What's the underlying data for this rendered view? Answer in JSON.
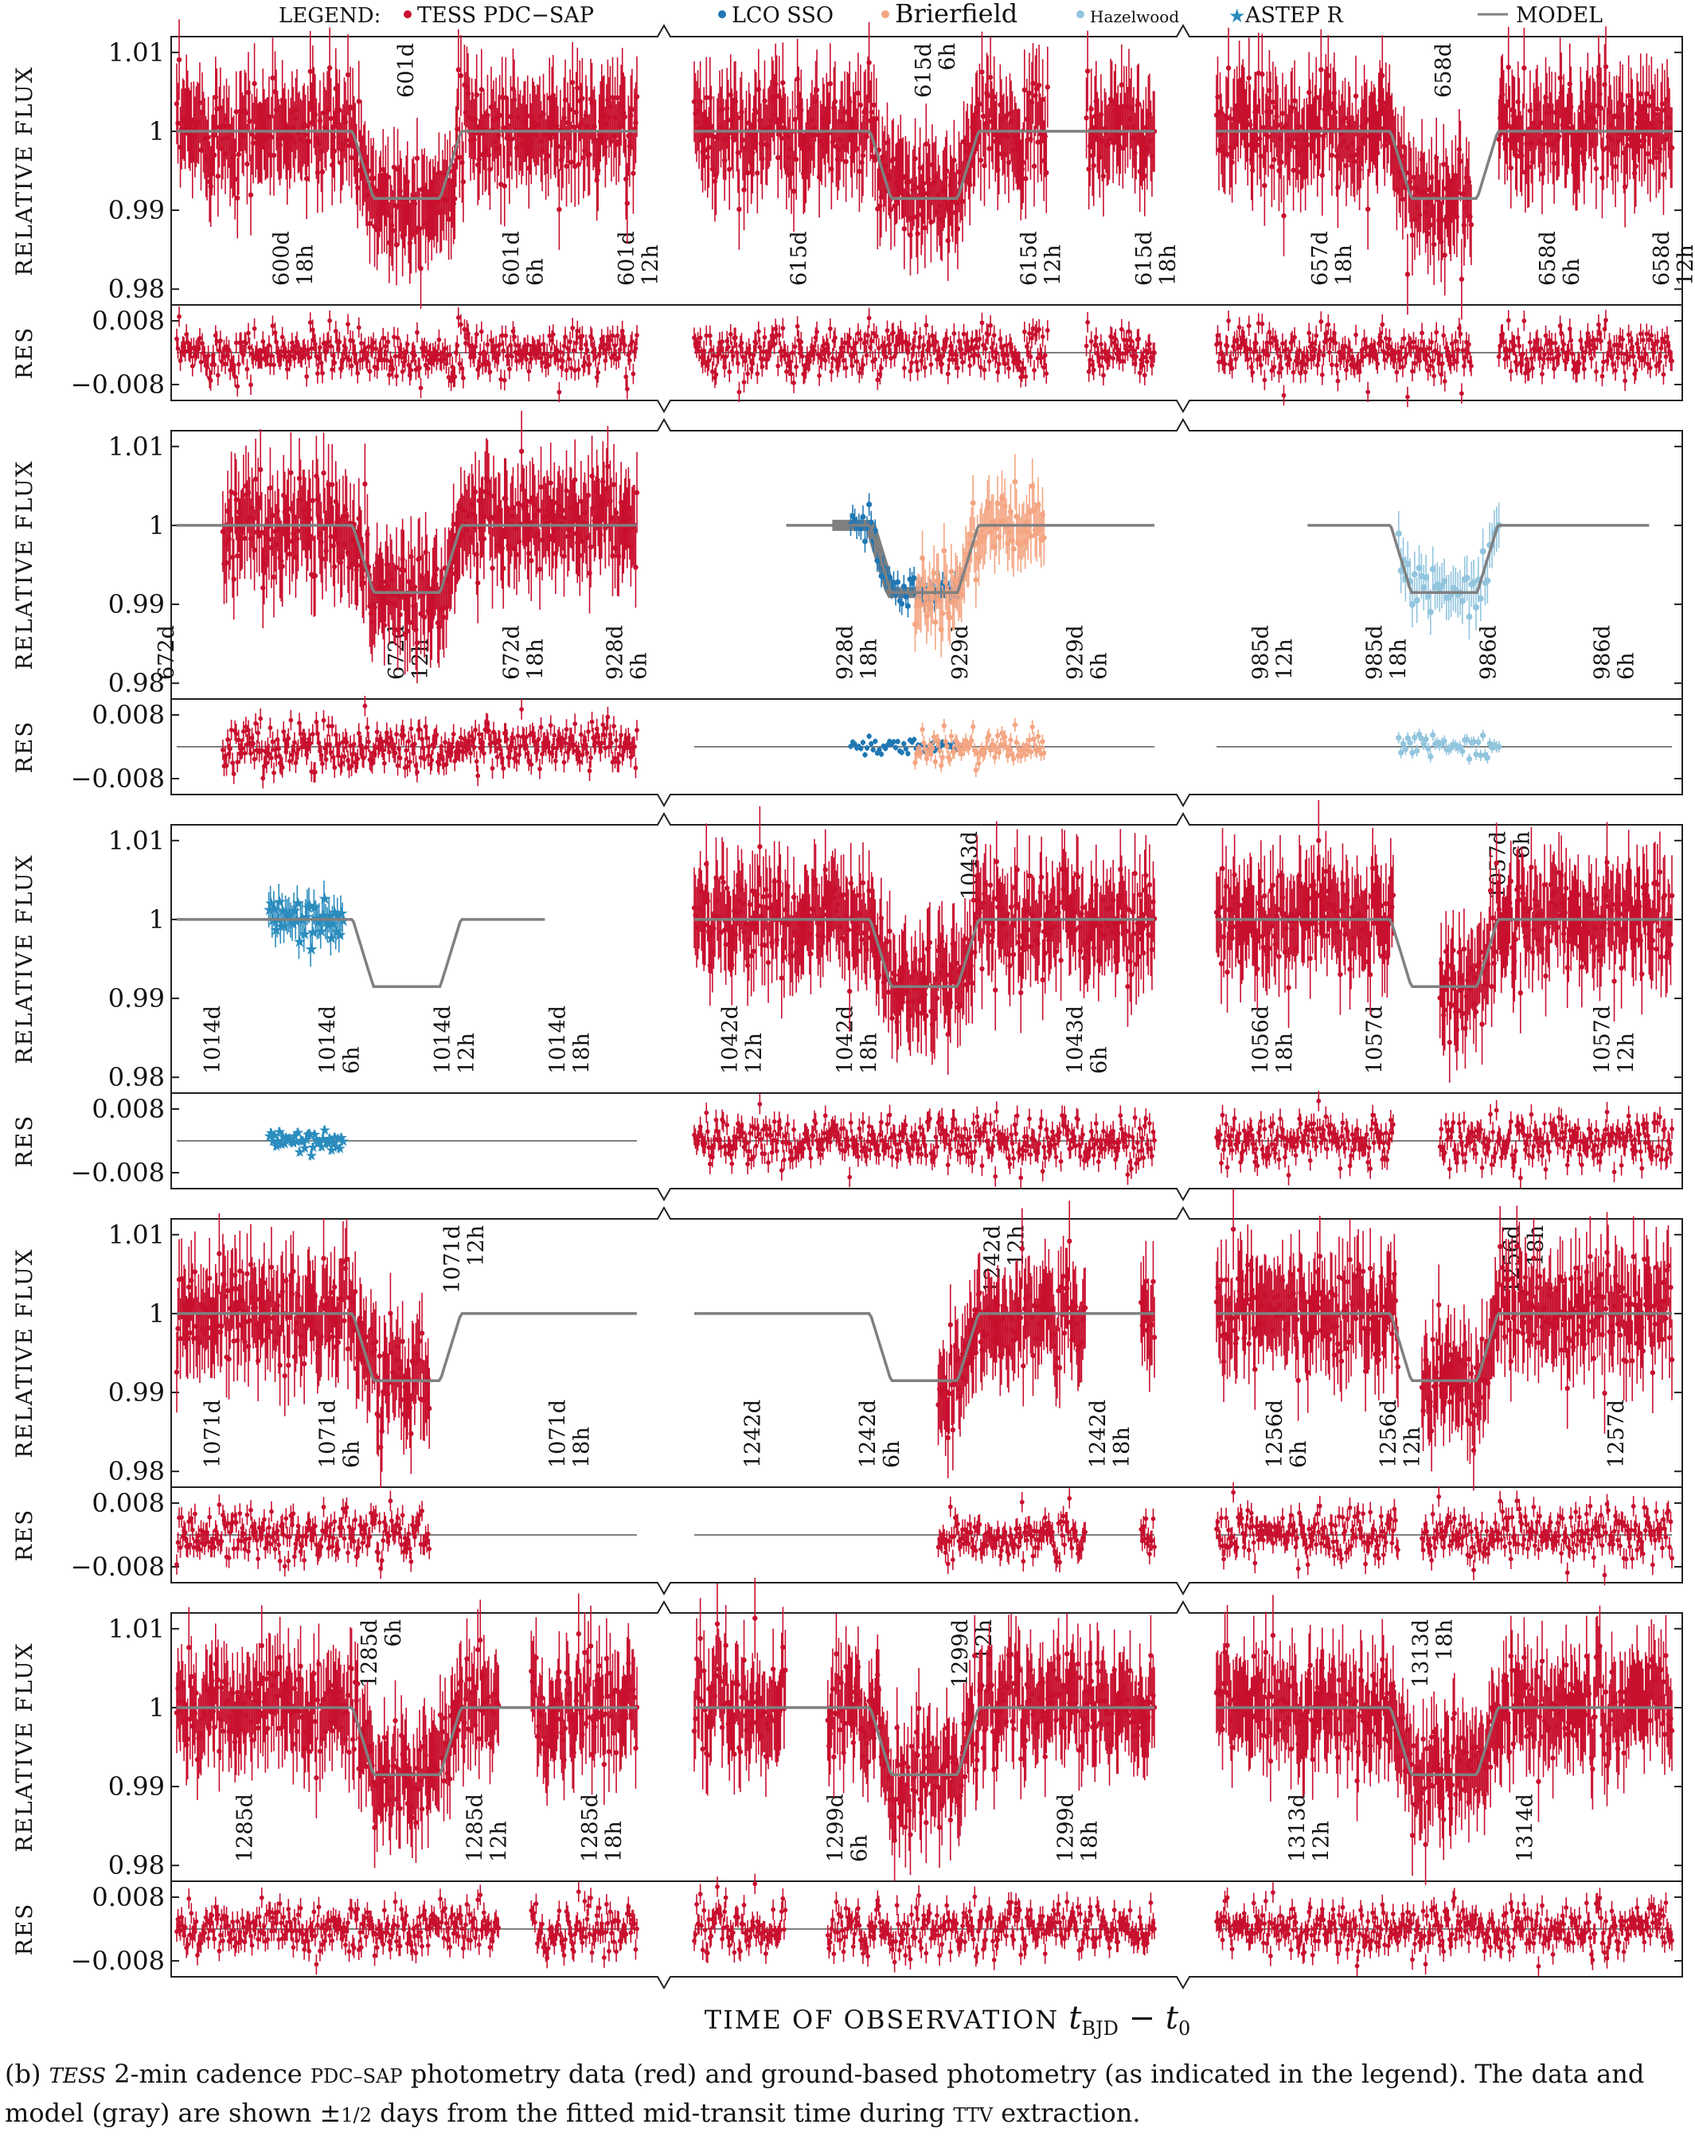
{
  "chart_data": {
    "type": "line",
    "title": "",
    "legend": {
      "title": "LEGEND:",
      "placement": "top",
      "entries": [
        {
          "name": "TESS PDC−SAP",
          "color": "#c8102e",
          "marker": "dot"
        },
        {
          "name": "LCO SSO",
          "color": "#1f77b4",
          "marker": "dot"
        },
        {
          "name": "Brierfield",
          "color": "#f4a582",
          "marker": "dot"
        },
        {
          "name": "Hazelwood",
          "color": "#92c5de",
          "marker": "dot"
        },
        {
          "name": "ASTEP R",
          "color": "#2b8cbe",
          "marker": "star"
        },
        {
          "name": "MODEL",
          "color": "#808080",
          "marker": "line"
        }
      ]
    },
    "ylabel": "RELATIVE FLUX",
    "res_ylabel": "RES",
    "xlabel": "TIME OF OBSERVATION",
    "xlabel_math": "t",
    "xlabel_sub": "BJD",
    "xlabel_tail": " − t",
    "xlabel_tail_sub": "0",
    "flux_ylim": [
      0.978,
      1.012
    ],
    "flux_yticks": [
      {
        "v": 1.01,
        "label": "1.01"
      },
      {
        "v": 1.0,
        "label": "1"
      },
      {
        "v": 0.99,
        "label": "0.99"
      },
      {
        "v": 0.98,
        "label": "0.98"
      }
    ],
    "res_ylim": [
      -0.012,
      0.012
    ],
    "res_yticks": [
      {
        "v": 0.008,
        "label": "0.008"
      },
      {
        "v": -0.008,
        "label": "−0.008"
      }
    ],
    "transit_depth": 0.0085,
    "rows": [
      {
        "windows": [
          {
            "center": 601.0,
            "dataset": "tess",
            "ticks": [
              {
                "t": 600.75,
                "l1": "600d",
                "l2": "18h"
              },
              {
                "t": 601.25,
                "l1": "601d",
                "l2": "6h"
              },
              {
                "t": 601.5,
                "l1": "601d",
                "l2": "12h"
              }
            ],
            "topTick": {
              "t": 601.0,
              "l1": "601d",
              "l2": ""
            },
            "gaps": []
          },
          {
            "center": 615.25,
            "dataset": "tess",
            "ticks": [
              {
                "t": 615.0,
                "l1": "615d",
                "l2": ""
              },
              {
                "t": 615.5,
                "l1": "615d",
                "l2": "12h"
              },
              {
                "t": 615.75,
                "l1": "615d",
                "l2": "18h"
              }
            ],
            "topTick": {
              "t": 615.25,
              "l1": "615d",
              "l2": "6h"
            },
            "gaps": [
              [
                615.52,
                615.6
              ]
            ]
          },
          {
            "center": 658.0,
            "dataset": "tess",
            "ticks": [
              {
                "t": 657.75,
                "l1": "657d",
                "l2": "18h"
              },
              {
                "t": 658.25,
                "l1": "658d",
                "l2": "6h"
              },
              {
                "t": 658.5,
                "l1": "658d",
                "l2": "12h"
              }
            ],
            "topTick": {
              "t": 658.0,
              "l1": "658d",
              "l2": ""
            },
            "gaps": [
              [
                658.06,
                658.12
              ]
            ]
          }
        ]
      },
      {
        "windows": [
          {
            "center": 672.5,
            "dataset": "tess",
            "ticks": [
              {
                "t": 672.0,
                "l1": "672d",
                "l2": ""
              },
              {
                "t": 672.5,
                "l1": "672d",
                "l2": "12h"
              },
              {
                "t": 672.75,
                "l1": "672d",
                "l2": "18h"
              }
            ],
            "topTick": null,
            "gaps": [
              [
                671.97,
                672.1
              ]
            ]
          },
          {
            "center": 928.9,
            "dataset": "ground",
            "ticks": [
              {
                "t": 928.25,
                "l1": "928d",
                "l2": "6h"
              },
              {
                "t": 928.75,
                "l1": "928d",
                "l2": "18h"
              },
              {
                "t": 929.0,
                "l1": "929d",
                "l2": ""
              },
              {
                "t": 929.25,
                "l1": "929d",
                "l2": "6h"
              }
            ],
            "topTick": null,
            "gaps": []
          },
          {
            "center": 985.88,
            "dataset": "hazelwood",
            "ticks": [
              {
                "t": 985.5,
                "l1": "985d",
                "l2": "12h"
              },
              {
                "t": 985.75,
                "l1": "985d",
                "l2": "18h"
              },
              {
                "t": 986.0,
                "l1": "986d",
                "l2": ""
              },
              {
                "t": 986.25,
                "l1": "986d",
                "l2": "6h"
              }
            ],
            "topTick": null,
            "gaps": []
          }
        ]
      },
      {
        "windows": [
          {
            "center": 1014.4,
            "dataset": "astep",
            "ticks": [
              {
                "t": 1014.0,
                "l1": "1014d",
                "l2": ""
              },
              {
                "t": 1014.25,
                "l1": "1014d",
                "l2": "6h"
              },
              {
                "t": 1014.5,
                "l1": "1014d",
                "l2": "12h"
              },
              {
                "t": 1014.75,
                "l1": "1014d",
                "l2": "18h"
              }
            ],
            "topTick": null,
            "gaps": []
          },
          {
            "center": 1042.9,
            "dataset": "tess",
            "ticks": [
              {
                "t": 1042.5,
                "l1": "1042d",
                "l2": "12h"
              },
              {
                "t": 1042.75,
                "l1": "1042d",
                "l2": "18h"
              },
              {
                "t": 1043.25,
                "l1": "1043d",
                "l2": "6h"
              }
            ],
            "topTick": {
              "t": 1043.0,
              "l1": "1043d",
              "l2": ""
            },
            "gaps": []
          },
          {
            "center": 1057.13,
            "dataset": "tess",
            "ticks": [
              {
                "t": 1056.75,
                "l1": "1056d",
                "l2": "18h"
              },
              {
                "t": 1057.0,
                "l1": "1057d",
                "l2": ""
              },
              {
                "t": 1057.5,
                "l1": "1057d",
                "l2": "12h"
              }
            ],
            "topTick": {
              "t": 1057.25,
              "l1": "1057d",
              "l2": "6h"
            },
            "gaps": [
              [
                1057.02,
                1057.12
              ]
            ]
          }
        ]
      },
      {
        "windows": [
          {
            "center": 1071.4,
            "dataset": "tess",
            "ticks": [
              {
                "t": 1071.0,
                "l1": "1071d",
                "l2": ""
              },
              {
                "t": 1071.25,
                "l1": "1071d",
                "l2": "6h"
              },
              {
                "t": 1071.75,
                "l1": "1071d",
                "l2": "18h"
              }
            ],
            "topTick": {
              "t": 1071.5,
              "l1": "1071d",
              "l2": "12h"
            },
            "gaps": [
              [
                1071.45,
                1072.0
              ]
            ]
          },
          {
            "center": 1242.35,
            "dataset": "tess",
            "ticks": [
              {
                "t": 1242.0,
                "l1": "1242d",
                "l2": ""
              },
              {
                "t": 1242.25,
                "l1": "1242d",
                "l2": "6h"
              },
              {
                "t": 1242.75,
                "l1": "1242d",
                "l2": "18h"
              }
            ],
            "topTick": {
              "t": 1242.5,
              "l1": "1242d",
              "l2": "12h"
            },
            "gaps": [
              [
                1241.8,
                1242.38
              ],
              [
                1242.7,
                1242.82
              ],
              [
                1242.87,
                1243.0
              ]
            ]
          },
          {
            "center": 1256.6,
            "dataset": "tess",
            "ticks": [
              {
                "t": 1256.25,
                "l1": "1256d",
                "l2": "6h"
              },
              {
                "t": 1256.5,
                "l1": "1256d",
                "l2": "12h"
              },
              {
                "t": 1257.0,
                "l1": "1257d",
                "l2": ""
              }
            ],
            "topTick": {
              "t": 1256.75,
              "l1": "1256d",
              "l2": "18h"
            },
            "gaps": [
              [
                1256.5,
                1256.55
              ]
            ]
          }
        ]
      },
      {
        "windows": [
          {
            "center": 1285.33,
            "dataset": "tess",
            "ticks": [
              {
                "t": 1285.0,
                "l1": "1285d",
                "l2": ""
              },
              {
                "t": 1285.5,
                "l1": "1285d",
                "l2": "12h"
              },
              {
                "t": 1285.75,
                "l1": "1285d",
                "l2": "18h"
              }
            ],
            "topTick": {
              "t": 1285.25,
              "l1": "1285d",
              "l2": "6h"
            },
            "gaps": [
              [
                1285.53,
                1285.6
              ]
            ]
          },
          {
            "center": 1299.42,
            "dataset": "tess",
            "ticks": [
              {
                "t": 1299.25,
                "l1": "1299d",
                "l2": "6h"
              },
              {
                "t": 1299.75,
                "l1": "1299d",
                "l2": "18h"
              }
            ],
            "topTick": {
              "t": 1299.5,
              "l1": "1299d",
              "l2": "12h"
            },
            "gaps": [
              [
                1299.12,
                1299.21
              ]
            ]
          },
          {
            "center": 1313.8,
            "dataset": "tess",
            "ticks": [
              {
                "t": 1313.5,
                "l1": "1313d",
                "l2": "12h"
              },
              {
                "t": 1314.0,
                "l1": "1314d",
                "l2": ""
              }
            ],
            "topTick": {
              "t": 1313.75,
              "l1": "1313d",
              "l2": "18h"
            },
            "gaps": []
          }
        ]
      }
    ]
  },
  "caption": {
    "label": "(b)",
    "tess": "TESS",
    "part1": " 2-min cadence ",
    "pdcsap": "PDC–SAP",
    "part2": " photometry data (red) and ground-based photometry (as indicated in the legend). The data and model (gray) are shown ±",
    "fraction": "1/2",
    "part3": " days from the fitted mid-transit time during ",
    "ttv": "TTV",
    "part4": " extraction."
  }
}
